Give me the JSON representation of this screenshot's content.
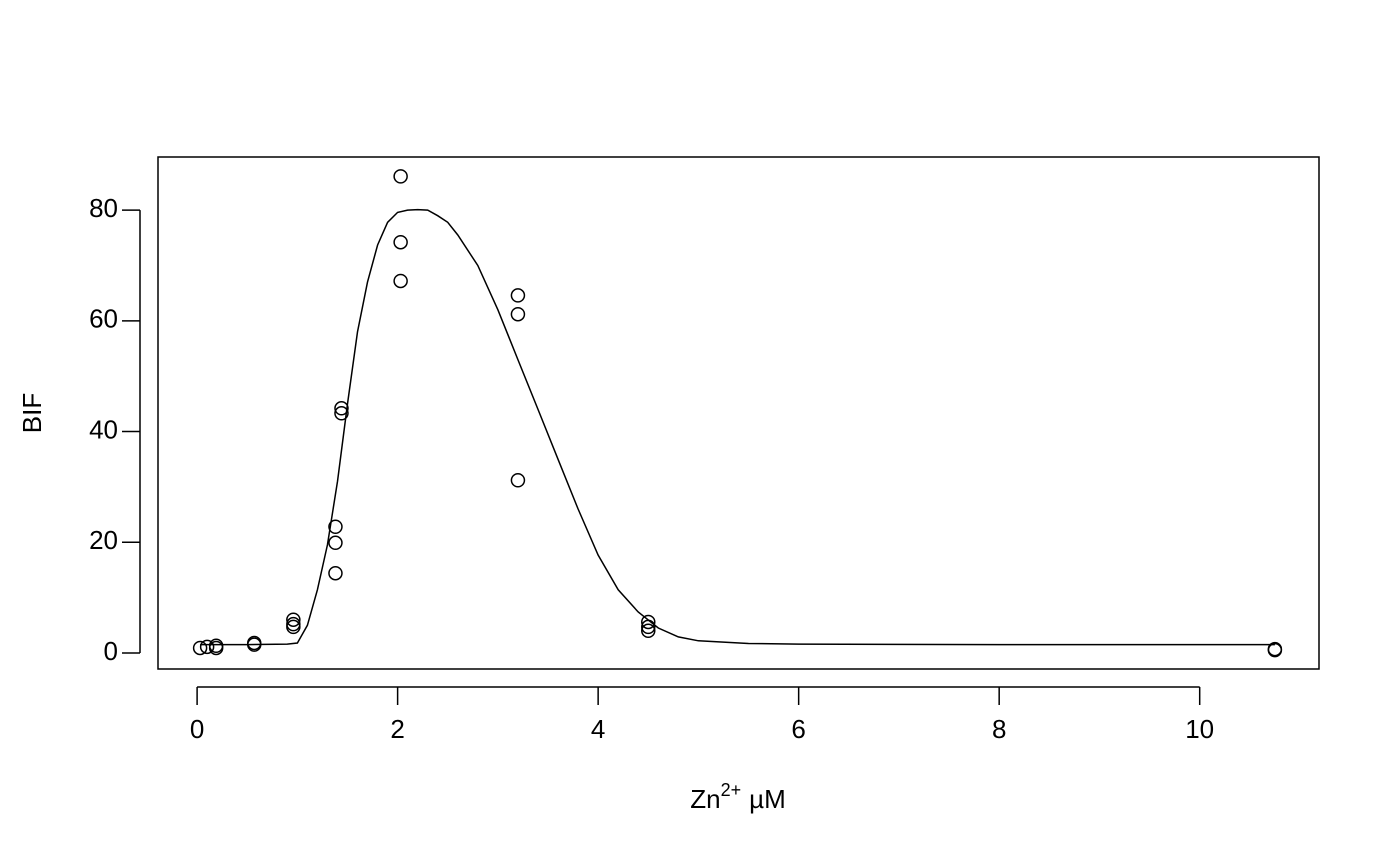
{
  "chart_data": {
    "type": "scatter",
    "xlabel": {
      "base": "Zn",
      "sup": "2+",
      "unit": "µM"
    },
    "ylabel": "BIF",
    "color": "#000000",
    "xlim": [
      -0.39,
      11.19
    ],
    "ylim": [
      -2.9,
      89.6
    ],
    "xticks": [
      0,
      2,
      4,
      6,
      8,
      10
    ],
    "yticks": [
      0,
      20,
      40,
      60,
      80
    ],
    "points": {
      "x": [
        0.03,
        0.1,
        0.19,
        0.19,
        0.57,
        0.57,
        0.96,
        0.96,
        0.96,
        1.38,
        1.38,
        1.38,
        1.44,
        1.44,
        2.03,
        2.03,
        2.03,
        3.2,
        3.2,
        3.2,
        4.5,
        4.5,
        4.5,
        10.75,
        10.75
      ],
      "y": [
        0.9,
        1.1,
        1.3,
        0.9,
        1.8,
        1.5,
        6.0,
        4.7,
        5.2,
        22.8,
        19.9,
        14.4,
        44.2,
        43.3,
        86.1,
        74.2,
        67.2,
        64.6,
        61.2,
        31.2,
        5.6,
        4.7,
        4.0,
        0.5,
        0.7
      ]
    },
    "curve": {
      "x": [
        0.03,
        0.5,
        0.9,
        1.0,
        1.1,
        1.2,
        1.3,
        1.4,
        1.5,
        1.6,
        1.7,
        1.8,
        1.9,
        2.0,
        2.1,
        2.2,
        2.3,
        2.4,
        2.5,
        2.6,
        2.8,
        3.0,
        3.2,
        3.4,
        3.6,
        3.8,
        4.0,
        4.2,
        4.4,
        4.6,
        4.8,
        5.0,
        5.5,
        6.0,
        8.0,
        10.75
      ],
      "y": [
        1.5,
        1.5,
        1.6,
        1.8,
        5.0,
        11.4,
        19.5,
        31,
        45,
        58,
        67,
        73.7,
        77.8,
        79.6,
        80,
        80.1,
        80,
        79,
        77.8,
        75.5,
        70,
        62,
        53,
        44,
        35,
        26,
        17.7,
        11.4,
        7.4,
        4.5,
        2.9,
        2.2,
        1.7,
        1.6,
        1.5,
        1.5
      ]
    }
  }
}
